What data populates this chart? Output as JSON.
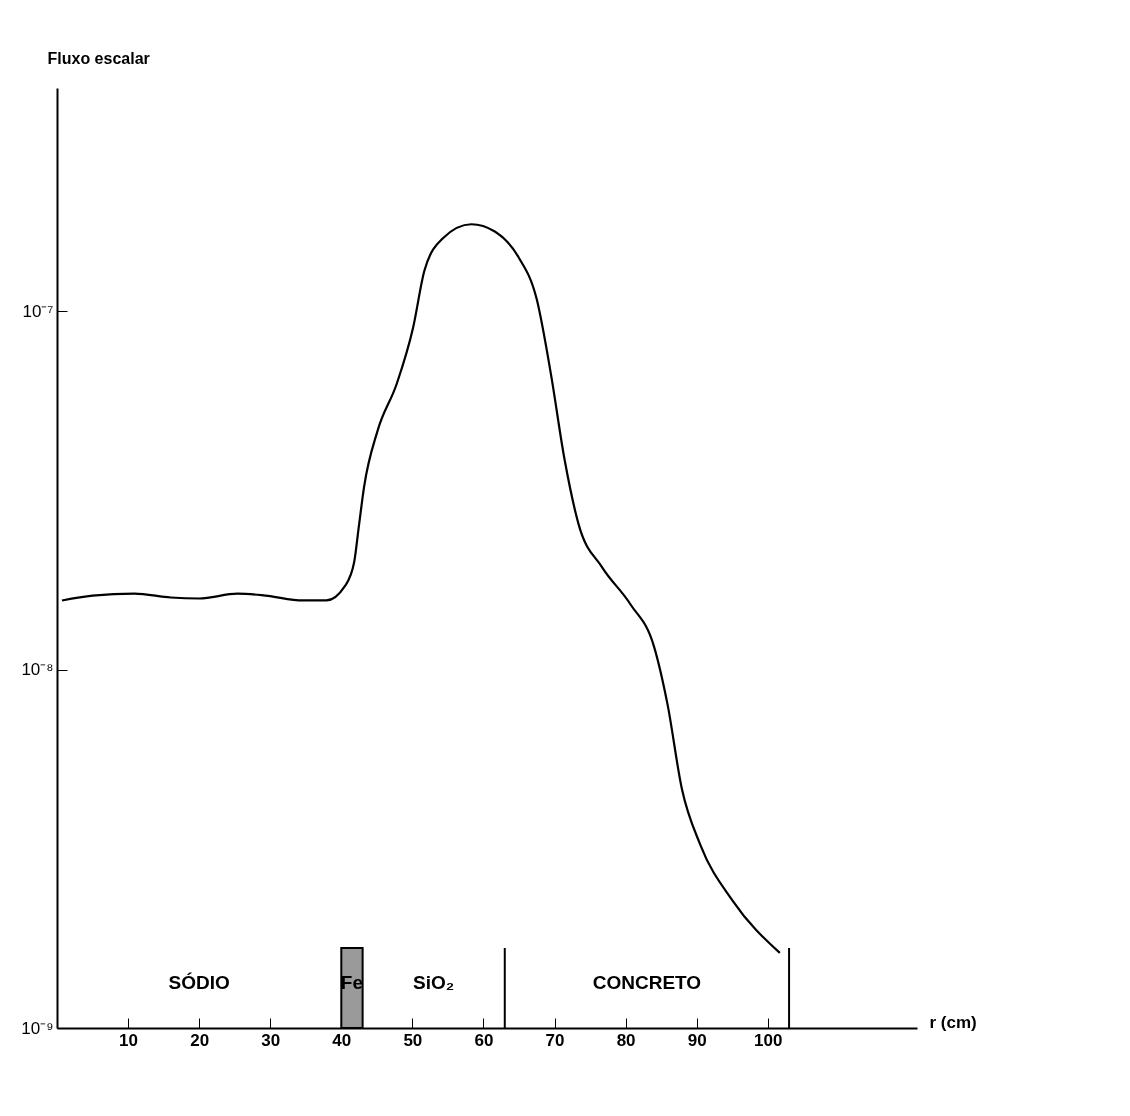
{
  "chart_data": {
    "type": "line",
    "xlabel": "r (cm)",
    "ylabel": "Fluxo escalar",
    "log": "y",
    "x": [
      0.7,
      5,
      10.9,
      16,
      20,
      25.4,
      29.3,
      34.6,
      37.9,
      40.5,
      41.8,
      42.5,
      43.2,
      45.1,
      47.8,
      50.1,
      51.7,
      54.3,
      58.3,
      61.6,
      64.9,
      67.5,
      69.5,
      71.4,
      73.4,
      76.7,
      80.7,
      84,
      85.9,
      87.9,
      90.5,
      95.1,
      101.7
    ],
    "series": [
      {
        "color": "#000000",
        "values": [
          1.56e-08,
          1.61e-08,
          1.63e-08,
          1.59e-08,
          1.58e-08,
          1.63e-08,
          1.61e-08,
          1.56e-08,
          1.56e-08,
          1.71e-08,
          1.99e-08,
          2.54e-08,
          3.23e-08,
          4.64e-08,
          6.28e-08,
          9e-08,
          1.3e-07,
          1.6e-07,
          1.75e-07,
          1.67e-07,
          1.42e-07,
          1.08e-07,
          6.67e-08,
          3.87e-08,
          2.54e-08,
          1.93e-08,
          1.52e-08,
          1.16e-08,
          8e-09,
          4.67e-09,
          3.25e-09,
          2.26e-09,
          1.62e-09
        ]
      }
    ],
    "xlim": [
      0,
      121
    ],
    "xticks": [
      10,
      20,
      30,
      40,
      50,
      60,
      70,
      80,
      90,
      100
    ],
    "ylim": [
      1e-09,
      4.2e-07
    ],
    "yticks": [
      {
        "value": 1e-09,
        "label": "10⁻⁹"
      },
      {
        "value": 1e-08,
        "label": "10⁻⁸"
      },
      {
        "value": 1e-07,
        "label": "10⁻⁷"
      }
    ],
    "bands": [
      {
        "axis": "x",
        "from": 40,
        "to": 43,
        "label": "Fe",
        "color": "#9a9a9a"
      }
    ],
    "annotations": [
      "SÓDIO",
      "SiO₂",
      "CONCRETO"
    ],
    "ref_lines": [
      {
        "axis": "x",
        "value": 63
      },
      {
        "axis": "x",
        "value": 103
      }
    ],
    "grid": false,
    "marker": "none",
    "line_style": "solid"
  }
}
